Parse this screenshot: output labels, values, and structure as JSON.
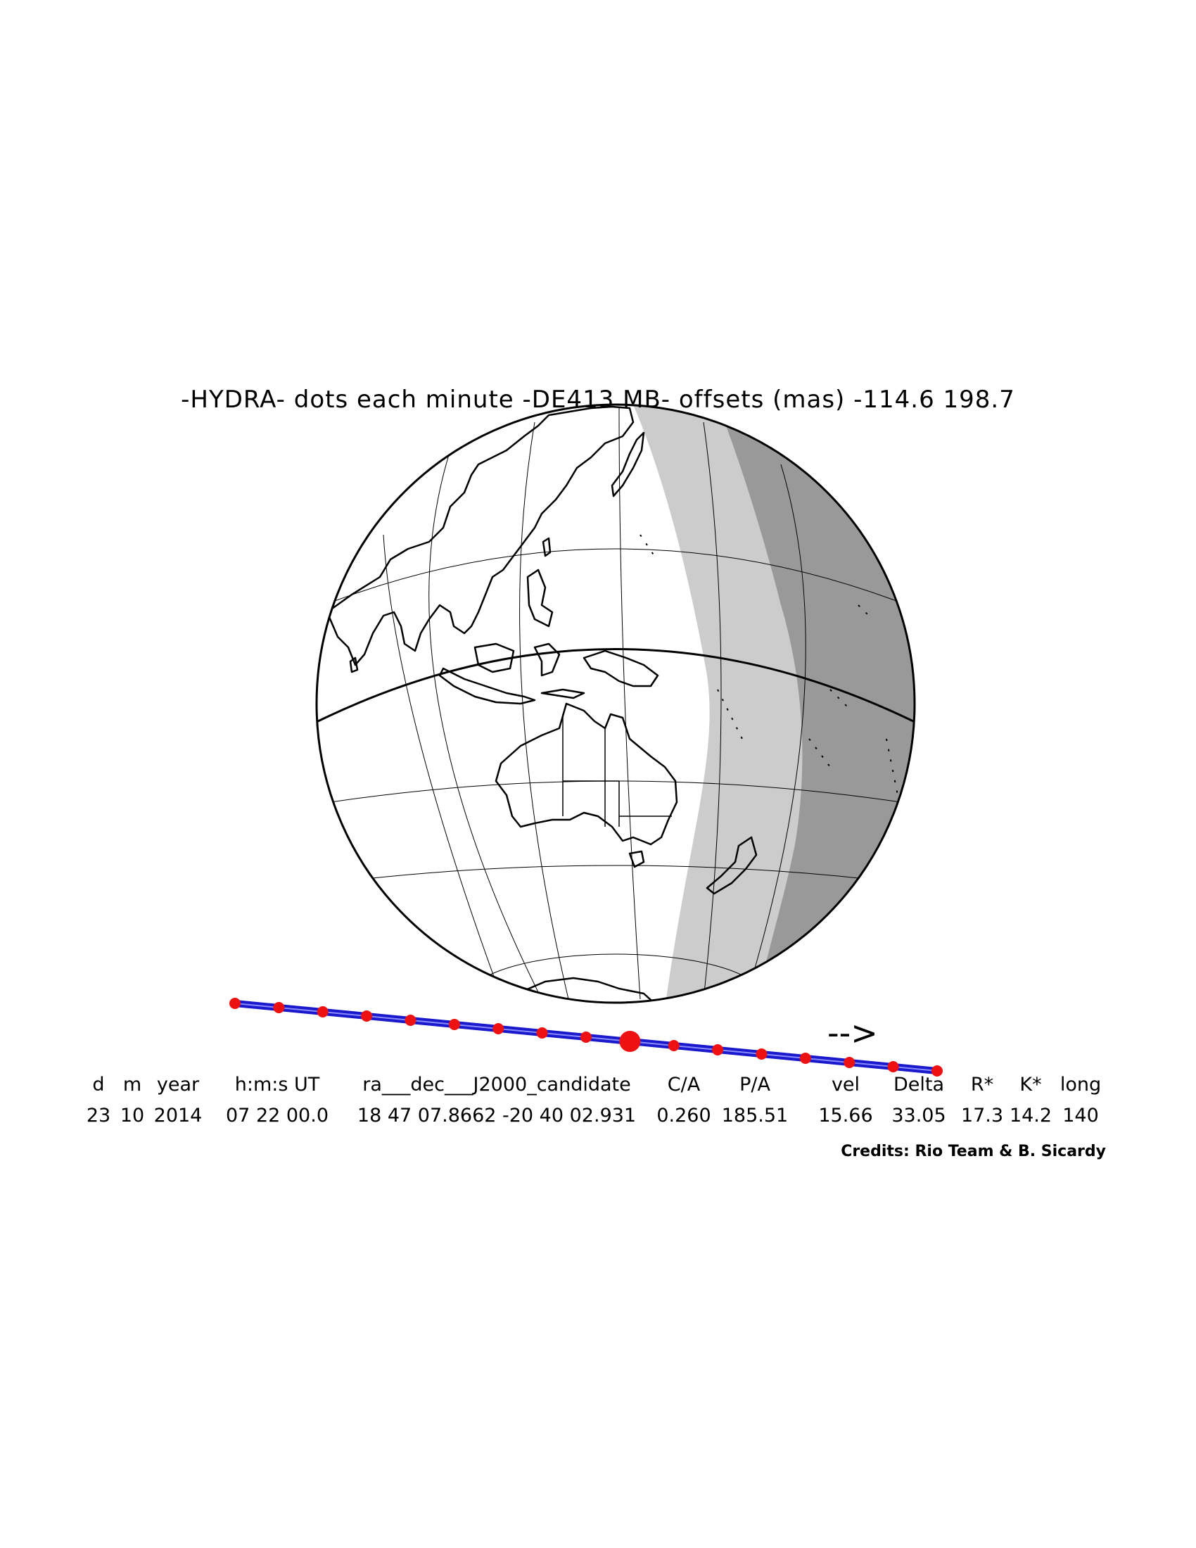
{
  "title": "-HYDRA- dots each minute -DE413 MB- offsets (mas) -114.6   198.7",
  "direction_arrow": "-->",
  "table": {
    "headers": [
      "d",
      "m",
      "year",
      "h:m:s UT",
      "ra___dec___J2000_candidate",
      "C/A",
      "P/A",
      "vel",
      "Delta",
      "R*",
      "K*",
      "long"
    ],
    "values": [
      "23",
      "10",
      "2014",
      "07 22 00.0",
      "18 47 07.8662 -20 40 02.931",
      "0.260",
      "185.51",
      "15.66",
      "33.05",
      "17.3",
      "14.2",
      "140"
    ]
  },
  "credits": "Credits: Rio Team & B. Sicardy",
  "colors": {
    "shadow_penumbra": "#cccccc",
    "shadow_umbra": "#999999",
    "track": "#1a1acc",
    "dots": "#ee1111",
    "outline": "#000000"
  },
  "track": {
    "dot_interval": "1 minute",
    "dot_count": 17,
    "central_instant_dot": 9
  }
}
